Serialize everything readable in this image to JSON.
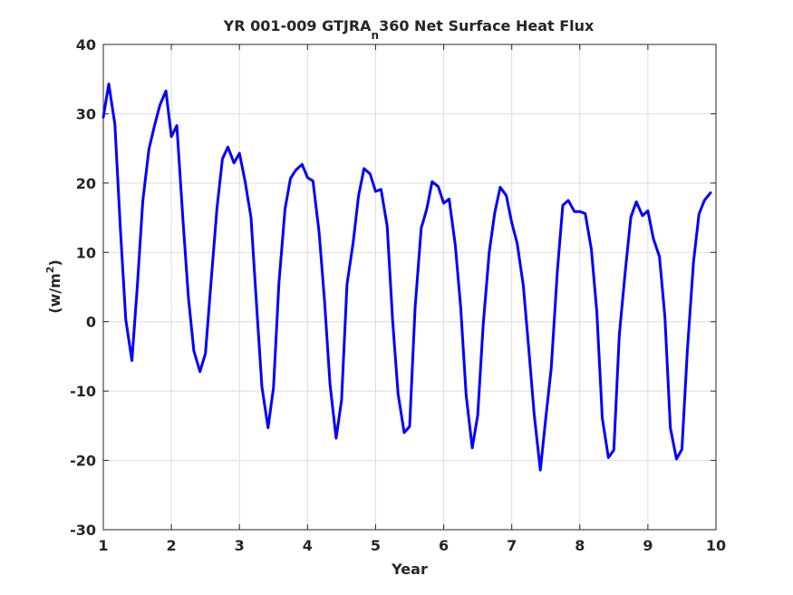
{
  "chart_data": {
    "type": "line",
    "title": {
      "main": "YR 001-009 GTJRA",
      "subscript": "n",
      "rest": "360 Net Surface Heat Flux"
    },
    "xlabel": "Year",
    "ylabel": {
      "prefix": "(w/m",
      "superscript": "2",
      "suffix": ")"
    },
    "xlim": [
      1,
      10
    ],
    "ylim": [
      -30,
      40
    ],
    "xticks": [
      1,
      2,
      3,
      4,
      5,
      6,
      7,
      8,
      9,
      10
    ],
    "xtick_labels": [
      "1",
      "2",
      "3",
      "4",
      "5",
      "6",
      "7",
      "8",
      "9",
      "10"
    ],
    "yticks": [
      -30,
      -20,
      -10,
      0,
      10,
      20,
      30,
      40
    ],
    "ytick_labels": [
      "-30",
      "-20",
      "-10",
      "0",
      "10",
      "20",
      "30",
      "40"
    ],
    "grid": true,
    "line_color": "#0000ff",
    "series": [
      {
        "x": [
          1.0,
          1.08,
          1.17,
          1.25,
          1.33,
          1.42,
          1.5,
          1.58,
          1.67,
          1.75,
          1.83,
          1.92,
          2.0,
          2.08,
          2.17,
          2.25,
          2.33,
          2.42,
          2.5,
          2.58,
          2.67,
          2.75,
          2.83,
          2.92,
          3.0,
          3.08,
          3.17,
          3.25,
          3.33,
          3.42,
          3.5,
          3.58,
          3.67,
          3.75,
          3.83,
          3.92,
          4.0,
          4.08,
          4.17,
          4.25,
          4.33,
          4.42,
          4.5,
          4.58,
          4.67,
          4.75,
          4.83,
          4.92,
          5.0,
          5.08,
          5.17,
          5.25,
          5.33,
          5.42,
          5.5,
          5.58,
          5.67,
          5.75,
          5.83,
          5.92,
          6.0,
          6.08,
          6.17,
          6.25,
          6.33,
          6.42,
          6.5,
          6.58,
          6.67,
          6.75,
          6.83,
          6.92,
          7.0,
          7.08,
          7.17,
          7.25,
          7.33,
          7.42,
          7.5,
          7.58,
          7.67,
          7.75,
          7.83,
          7.92,
          8.0,
          8.08,
          8.17,
          8.25,
          8.33,
          8.42,
          8.5,
          8.58,
          8.67,
          8.75,
          8.83,
          8.92,
          9.0,
          9.08,
          9.17,
          9.25,
          9.33,
          9.42,
          9.5,
          9.58,
          9.67,
          9.75,
          9.83,
          9.92
        ],
        "y": [
          29.5,
          34.3,
          28.5,
          13.5,
          0.3,
          -5.6,
          5.2,
          17.4,
          24.9,
          28.2,
          31.2,
          33.3,
          26.7,
          28.3,
          14.7,
          3.5,
          -4.2,
          -7.2,
          -4.6,
          5.4,
          16.4,
          23.5,
          25.2,
          22.9,
          24.3,
          20.4,
          15.0,
          2.6,
          -9.4,
          -15.3,
          -9.5,
          5.6,
          16.3,
          20.7,
          21.9,
          22.7,
          20.8,
          20.3,
          12.9,
          3.0,
          -9.0,
          -16.8,
          -11.3,
          5.4,
          11.4,
          18.2,
          22.1,
          21.3,
          18.8,
          19.1,
          13.8,
          0.2,
          -10.4,
          -16.0,
          -15.1,
          2.0,
          13.5,
          16.2,
          20.2,
          19.5,
          17.1,
          17.7,
          11.1,
          2.1,
          -10.6,
          -18.2,
          -13.5,
          -0.5,
          10.1,
          15.7,
          19.4,
          18.2,
          14.3,
          11.3,
          5.2,
          -3.9,
          -13.4,
          -21.4,
          -13.9,
          -6.7,
          7.3,
          16.8,
          17.5,
          15.9,
          15.9,
          15.6,
          10.4,
          1.4,
          -13.9,
          -19.6,
          -18.5,
          -1.9,
          7.5,
          15.1,
          17.3,
          15.3,
          16.0,
          12.0,
          9.4,
          0.7,
          -15.3,
          -19.8,
          -18.4,
          -4.1,
          8.6,
          15.5,
          17.5,
          18.6
        ]
      }
    ]
  }
}
